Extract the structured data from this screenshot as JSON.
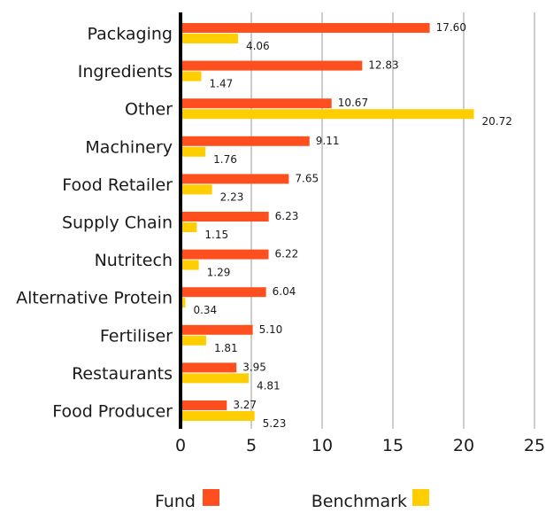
{
  "chart_data": {
    "type": "bar",
    "orientation": "horizontal",
    "categories": [
      "Packaging",
      "Ingredients",
      "Other",
      "Machinery",
      "Food Retailer",
      "Supply Chain",
      "Nutritech",
      "Alternative Protein",
      "Fertiliser",
      "Restaurants",
      "Food Producer"
    ],
    "series": [
      {
        "name": "Fund",
        "color": "#FF4F1F",
        "values": [
          17.6,
          12.83,
          10.67,
          9.11,
          7.65,
          6.23,
          6.22,
          6.04,
          5.1,
          3.95,
          3.27
        ],
        "labels": [
          "17.60",
          "12.83",
          "10.67",
          "9.11",
          "7.65",
          "6.23",
          "6.22",
          "6.04",
          "5.10",
          "3.95",
          "3.27"
        ]
      },
      {
        "name": "Benchmark",
        "color": "#FFCE00",
        "values": [
          4.06,
          1.47,
          20.72,
          1.76,
          2.23,
          1.15,
          1.29,
          0.34,
          1.81,
          4.81,
          5.23
        ],
        "labels": [
          "4.06",
          "1.47",
          "20.72",
          "1.76",
          "2.23",
          "1.15",
          "1.29",
          "0.34",
          "1.81",
          "4.81",
          "5.23"
        ]
      }
    ],
    "xlim": [
      0,
      25
    ],
    "xticks": [
      0,
      5,
      10,
      15,
      20,
      25
    ],
    "xtick_labels": [
      "0",
      "5",
      "10",
      "15",
      "20",
      "25"
    ],
    "grid": "vertical",
    "legend_position": "bottom"
  }
}
